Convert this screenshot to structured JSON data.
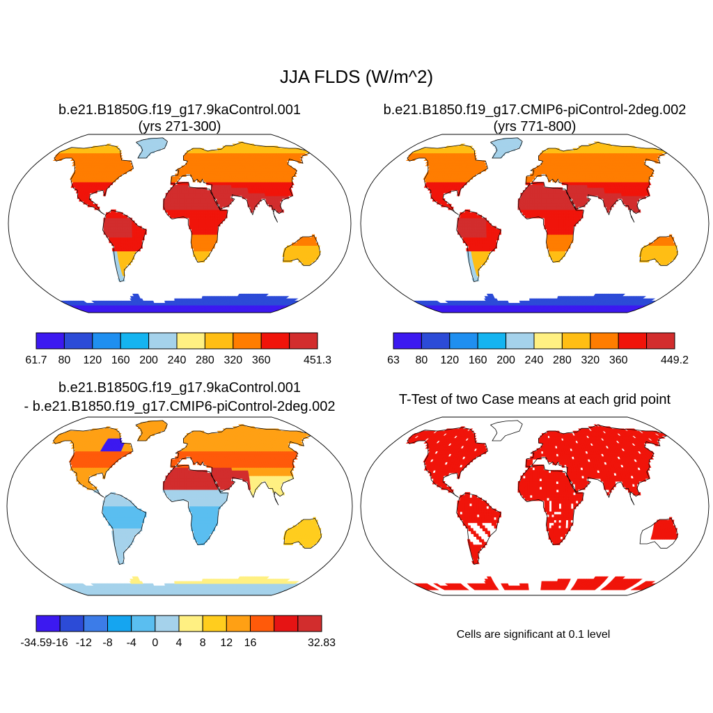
{
  "title": "JJA FLDS (W/m^2)",
  "chart_data": [
    {
      "type": "heatmap",
      "id": "case1",
      "title_line1": "b.e21.B1850G.f19_g17.9kaControl.001",
      "title_line2": "(yrs 271-300)",
      "projection": "Robinson",
      "colorbar": {
        "colors": [
          "#3c19f0",
          "#2c4bd7",
          "#1f8ff0",
          "#15b4f0",
          "#a5d2eb",
          "#fff082",
          "#ffbe14",
          "#ff7d00",
          "#f0140a",
          "#d22d2d"
        ],
        "tick_labels": [
          "61.7",
          "80",
          "120",
          "160",
          "200",
          "240",
          "280",
          "320",
          "360",
          "451.3"
        ],
        "min": 61.7,
        "max": 451.3
      }
    },
    {
      "type": "heatmap",
      "id": "case2",
      "title_line1": "b.e21.B1850.f19_g17.CMIP6-piControl-2deg.002",
      "title_line2": "(yrs 771-800)",
      "projection": "Robinson",
      "colorbar": {
        "colors": [
          "#3c19f0",
          "#2c4bd7",
          "#1f8ff0",
          "#15b4f0",
          "#a5d2eb",
          "#fff082",
          "#ffbe14",
          "#ff7d00",
          "#f0140a",
          "#d22d2d"
        ],
        "tick_labels": [
          "63",
          "80",
          "120",
          "160",
          "200",
          "240",
          "280",
          "320",
          "360",
          "449.2"
        ],
        "min": 63,
        "max": 449.2
      }
    },
    {
      "type": "heatmap",
      "id": "difference",
      "title_line1": "b.e21.B1850G.f19_g17.9kaControl.001",
      "title_line2": "- b.e21.B1850.f19_g17.CMIP6-piControl-2deg.002",
      "projection": "Robinson",
      "colorbar": {
        "colors": [
          "#3c19f0",
          "#2c4bd7",
          "#3c7ce8",
          "#15a5f0",
          "#5abef0",
          "#a5d2eb",
          "#fff082",
          "#ffcd1e",
          "#ffa014",
          "#ff5a0a",
          "#e61414",
          "#d22d2d"
        ],
        "tick_labels": [
          "-34.59",
          "-16",
          "-12",
          "-8",
          "-4",
          "0",
          "4",
          "8",
          "12",
          "16",
          "32.83"
        ],
        "min": -34.59,
        "max": 32.83
      }
    },
    {
      "type": "heatmap",
      "id": "ttest",
      "title_line1": "T-Test of two Case means at each grid point",
      "projection": "Robinson",
      "fill_color": "#f0140a",
      "note": "Cells are significant at 0.1 level"
    }
  ]
}
